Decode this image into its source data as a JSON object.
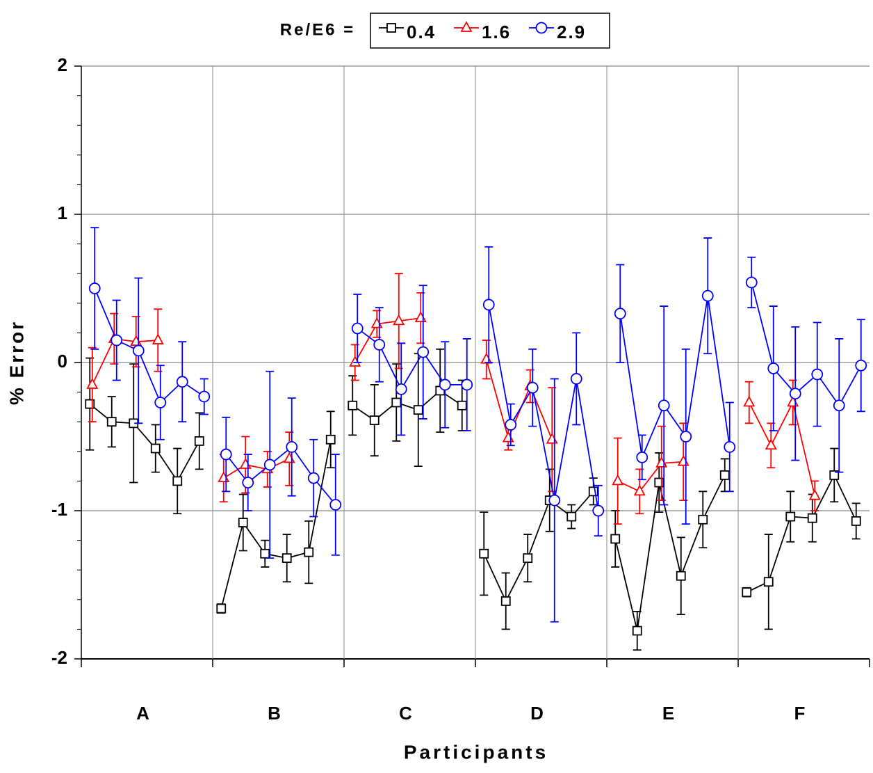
{
  "chart_data": {
    "type": "errorbar",
    "legend_title": "Re/E6 =",
    "xlabel": "Participants",
    "ylabel": "% Error",
    "groups": [
      "A",
      "B",
      "C",
      "D",
      "E",
      "F"
    ],
    "ylim": [
      -2,
      2
    ],
    "yticks": [
      -2,
      -1,
      0,
      1,
      2
    ],
    "minor_yticks": [
      -1.8,
      -1.6,
      -1.4,
      -1.2,
      -0.8,
      -0.6,
      -0.4,
      -0.2,
      0.2,
      0.4,
      0.6,
      0.8,
      1.2,
      1.4,
      1.6,
      1.8
    ],
    "grid": true,
    "series": [
      {
        "name": "0.4",
        "color": "#000000",
        "marker": "square",
        "values": [
          -0.28,
          -0.4,
          -0.41,
          -0.58,
          -0.8,
          -0.53,
          -1.66,
          -1.08,
          -1.29,
          -1.32,
          -1.28,
          -0.52,
          -0.29,
          -0.39,
          -0.27,
          -0.32,
          -0.19,
          -0.29,
          -1.29,
          -1.61,
          -1.32,
          -0.93,
          -1.04,
          -0.87,
          -1.19,
          -1.81,
          -0.81,
          -1.44,
          -1.06,
          -0.76,
          -1.55,
          -1.48,
          -1.04,
          -1.05,
          -0.76,
          -1.07
        ],
        "errors": [
          0.31,
          0.17,
          0.4,
          0.16,
          0.22,
          0.19,
          0.03,
          0.19,
          0.09,
          0.16,
          0.21,
          0.19,
          0.2,
          0.24,
          0.26,
          0.38,
          0.28,
          0.17,
          0.28,
          0.19,
          0.16,
          0.21,
          0.08,
          0.09,
          0.19,
          0.13,
          0.2,
          0.26,
          0.19,
          0.11,
          0.03,
          0.32,
          0.17,
          0.16,
          0.18,
          0.12
        ]
      },
      {
        "name": "1.6",
        "color": "#ff0000",
        "marker": "triangle",
        "values": [
          -0.15,
          0.16,
          0.14,
          0.15,
          null,
          null,
          -0.78,
          -0.69,
          -0.72,
          -0.65,
          null,
          null,
          0.0,
          0.26,
          0.28,
          0.3,
          null,
          null,
          0.02,
          -0.51,
          -0.16,
          -0.52,
          null,
          null,
          -0.8,
          -0.87,
          -0.68,
          -0.67,
          null,
          null,
          -0.27,
          -0.56,
          -0.27,
          -0.9,
          null,
          null
        ],
        "errors": [
          0.25,
          0.17,
          0.17,
          0.21,
          null,
          null,
          0.16,
          0.19,
          0.12,
          0.18,
          null,
          null,
          0.12,
          0.09,
          0.32,
          0.17,
          null,
          null,
          0.13,
          0.08,
          0.11,
          0.35,
          null,
          null,
          0.29,
          0.15,
          0.25,
          0.26,
          null,
          null,
          0.14,
          0.15,
          0.15,
          0.1,
          null,
          null
        ]
      },
      {
        "name": "2.9",
        "color": "#0000ff",
        "marker": "circle",
        "values": [
          0.5,
          0.15,
          0.08,
          -0.27,
          -0.13,
          -0.23,
          -0.62,
          -0.81,
          -0.69,
          -0.57,
          -0.78,
          -0.96,
          0.23,
          0.12,
          -0.18,
          0.07,
          -0.15,
          -0.15,
          0.39,
          -0.42,
          -0.17,
          -0.93,
          -0.11,
          -1.0,
          0.33,
          -0.64,
          -0.29,
          -0.5,
          0.45,
          -0.57,
          0.54,
          -0.04,
          -0.21,
          -0.08,
          -0.29,
          -0.02
        ],
        "errors": [
          0.41,
          0.27,
          0.49,
          0.25,
          0.27,
          0.12,
          0.25,
          0.19,
          0.63,
          0.33,
          0.26,
          0.34,
          0.23,
          0.25,
          0.31,
          0.45,
          0.29,
          0.31,
          0.39,
          0.14,
          0.26,
          0.82,
          0.31,
          0.17,
          0.33,
          0.15,
          0.67,
          0.59,
          0.39,
          0.3,
          0.17,
          0.42,
          0.45,
          0.35,
          0.45,
          0.31
        ]
      }
    ]
  }
}
